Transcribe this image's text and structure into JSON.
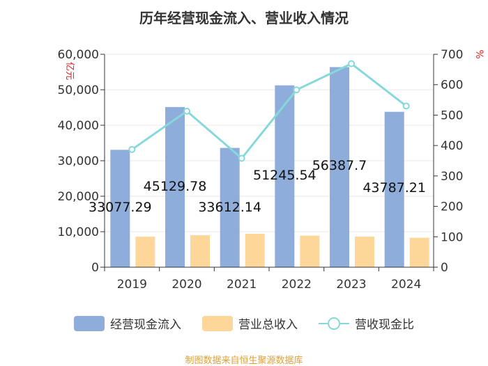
{
  "chart_data": {
    "type": "bar",
    "title": "历年经营现金流入、营业收入情况",
    "categories": [
      "2019",
      "2020",
      "2021",
      "2022",
      "2023",
      "2024"
    ],
    "series": [
      {
        "name": "经营现金流入",
        "kind": "bar",
        "axis": "left",
        "color": "#8eadda",
        "values": [
          33077.29,
          45129.78,
          33612.14,
          51245.54,
          56387.7,
          43787.21
        ],
        "labels": [
          "33077.29",
          "45129.78",
          "33612.14",
          "51245.54",
          "56387.7",
          "43787.21"
        ]
      },
      {
        "name": "营业总收入",
        "kind": "bar",
        "axis": "left",
        "color": "#fdd69a",
        "values": [
          8600,
          9000,
          9400,
          8900,
          8600,
          8300
        ]
      },
      {
        "name": "营收现金比",
        "kind": "line",
        "axis": "right",
        "color": "#86d8da",
        "values": [
          387,
          513,
          358,
          583,
          669,
          530
        ]
      }
    ],
    "y_left": {
      "label": "亿元",
      "min": 0,
      "max": 60000,
      "ticks": [
        0,
        10000,
        20000,
        30000,
        40000,
        50000,
        60000
      ],
      "tick_labels": [
        "0",
        "10,000",
        "20,000",
        "30,000",
        "40,000",
        "50,000",
        "60,000"
      ]
    },
    "y_right": {
      "label": "%",
      "min": 0,
      "max": 700,
      "ticks": [
        0,
        100,
        200,
        300,
        400,
        500,
        600,
        700
      ],
      "tick_labels": [
        "0",
        "100",
        "200",
        "300",
        "400",
        "500",
        "600",
        "700"
      ]
    },
    "legend_position": "bottom",
    "source": "制图数据来自恒生聚源数据库"
  }
}
